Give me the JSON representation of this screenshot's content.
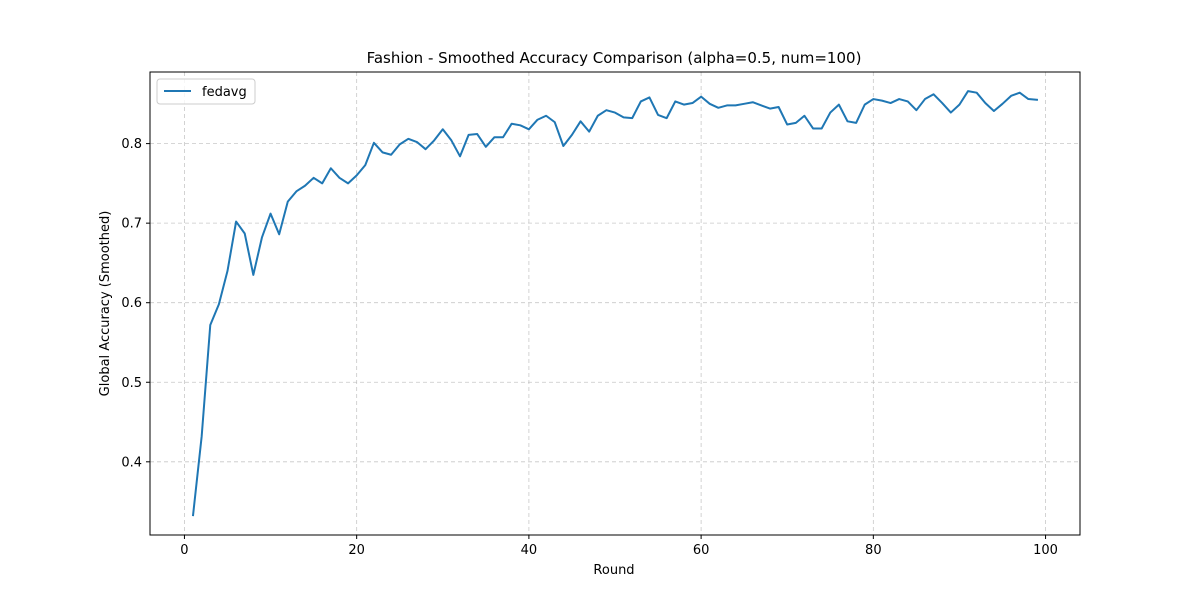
{
  "chart_data": {
    "type": "line",
    "title": "Fashion - Smoothed Accuracy Comparison (alpha=0.5, num=100)",
    "xlabel": "Round",
    "ylabel": "Global Accuracy (Smoothed)",
    "xlim": [
      -4,
      104
    ],
    "ylim": [
      0.308,
      0.89
    ],
    "xticks": [
      0,
      20,
      40,
      60,
      80,
      100
    ],
    "xtick_labels": [
      "0",
      "20",
      "40",
      "60",
      "80",
      "100"
    ],
    "yticks": [
      0.4,
      0.5,
      0.6,
      0.7,
      0.8
    ],
    "ytick_labels": [
      "0.4",
      "0.5",
      "0.6",
      "0.7",
      "0.8"
    ],
    "grid": true,
    "legend_position": "top-left",
    "series": [
      {
        "name": "fedavg",
        "color": "#1f77b4",
        "x": [
          1,
          2,
          3,
          4,
          5,
          6,
          7,
          8,
          9,
          10,
          11,
          12,
          13,
          14,
          15,
          16,
          17,
          18,
          19,
          20,
          21,
          22,
          23,
          24,
          25,
          26,
          27,
          28,
          29,
          30,
          31,
          32,
          33,
          34,
          35,
          36,
          37,
          38,
          39,
          40,
          41,
          42,
          43,
          44,
          45,
          46,
          47,
          48,
          49,
          50,
          51,
          52,
          53,
          54,
          55,
          56,
          57,
          58,
          59,
          60,
          61,
          62,
          63,
          64,
          65,
          66,
          67,
          68,
          69,
          70,
          71,
          72,
          73,
          74,
          75,
          76,
          77,
          78,
          79,
          80,
          81,
          82,
          83,
          84,
          85,
          86,
          87,
          88,
          89,
          90,
          91,
          92,
          93,
          94,
          95,
          96,
          97,
          98,
          99
        ],
        "values": [
          0.333,
          0.432,
          0.572,
          0.598,
          0.64,
          0.702,
          0.687,
          0.635,
          0.682,
          0.712,
          0.686,
          0.727,
          0.74,
          0.747,
          0.757,
          0.75,
          0.769,
          0.757,
          0.75,
          0.76,
          0.773,
          0.801,
          0.789,
          0.786,
          0.799,
          0.806,
          0.802,
          0.793,
          0.804,
          0.818,
          0.804,
          0.784,
          0.811,
          0.812,
          0.796,
          0.808,
          0.808,
          0.825,
          0.823,
          0.818,
          0.83,
          0.835,
          0.827,
          0.797,
          0.811,
          0.828,
          0.815,
          0.835,
          0.842,
          0.839,
          0.833,
          0.832,
          0.853,
          0.858,
          0.836,
          0.832,
          0.853,
          0.849,
          0.851,
          0.859,
          0.85,
          0.845,
          0.848,
          0.848,
          0.85,
          0.852,
          0.848,
          0.844,
          0.846,
          0.824,
          0.826,
          0.835,
          0.819,
          0.819,
          0.839,
          0.849,
          0.828,
          0.826,
          0.849,
          0.856,
          0.854,
          0.851,
          0.856,
          0.853,
          0.842,
          0.856,
          0.862,
          0.851,
          0.839,
          0.849,
          0.866,
          0.864,
          0.851,
          0.841,
          0.85,
          0.86,
          0.864,
          0.856,
          0.855
        ]
      }
    ]
  }
}
